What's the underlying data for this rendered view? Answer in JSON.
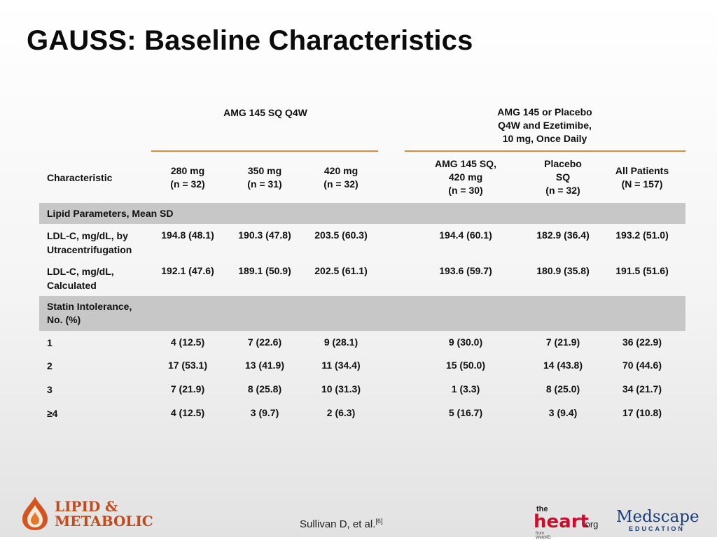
{
  "title": "GAUSS: Baseline Characteristics",
  "table": {
    "group1": "AMG 145 SQ Q4W",
    "group2": [
      "AMG 145 or Placebo",
      "Q4W and Ezetimibe,",
      "10 mg, Once Daily"
    ],
    "characteristic_header": "Characteristic",
    "columns": [
      [
        "280 mg",
        "(n = 32)"
      ],
      [
        "350 mg",
        "(n = 31)"
      ],
      [
        "420 mg",
        "(n = 32)"
      ],
      [
        "AMG 145 SQ,",
        "420 mg",
        "(n = 30)"
      ],
      [
        "Placebo",
        "SQ",
        "(n = 32)"
      ],
      [
        "All Patients",
        "(N = 157)"
      ]
    ],
    "section1": "Lipid Parameters, Mean SD",
    "section2": [
      "Statin Intolerance,",
      "No. (%)"
    ],
    "lipid_rows": [
      {
        "label": [
          "LDL-C, mg/dL, by",
          "Utracentrifugation"
        ],
        "values": [
          "194.8 (48.1)",
          "190.3 (47.8)",
          "203.5 (60.3)",
          "194.4 (60.1)",
          "182.9 (36.4)",
          "193.2 (51.0)"
        ]
      },
      {
        "label": [
          "LDL-C, mg/dL,",
          "Calculated"
        ],
        "values": [
          "192.1 (47.6)",
          "189.1 (50.9)",
          "202.5 (61.1)",
          "193.6 (59.7)",
          "180.9 (35.8)",
          "191.5 (51.6)"
        ]
      }
    ],
    "statin_rows": [
      {
        "label": "1",
        "values": [
          "4 (12.5)",
          "7 (22.6)",
          "9 (28.1)",
          "9 (30.0)",
          "7 (21.9)",
          "36 (22.9)"
        ]
      },
      {
        "label": "2",
        "values": [
          "17 (53.1)",
          "13 (41.9)",
          "11 (34.4)",
          "15 (50.0)",
          "14 (43.8)",
          "70 (44.6)"
        ]
      },
      {
        "label": "3",
        "values": [
          "7 (21.9)",
          "8 (25.8)",
          "10 (31.3)",
          "1 (3.3)",
          "8 (25.0)",
          "34 (21.7)"
        ]
      },
      {
        "label": "≥4",
        "values": [
          "4 (12.5)",
          "3 (9.7)",
          "2 (6.3)",
          "5 (16.7)",
          "3 (9.4)",
          "17 (10.8)"
        ]
      }
    ]
  },
  "footer": {
    "citation": "Sullivan D, et al.",
    "citation_ref": "[6]",
    "logo_left": [
      "LIPID &",
      "METABOLIC"
    ],
    "logo_heart": {
      "the": "the",
      "heart": "heart",
      "org": ".org",
      "from": "from WebMD"
    },
    "logo_medscape": {
      "name": "Medscape",
      "sub": "EDUCATION"
    }
  },
  "colors": {
    "accent_rule": "#d98a3a",
    "section_band": "#c7c7c7",
    "logo_red": "#c24a1d"
  }
}
